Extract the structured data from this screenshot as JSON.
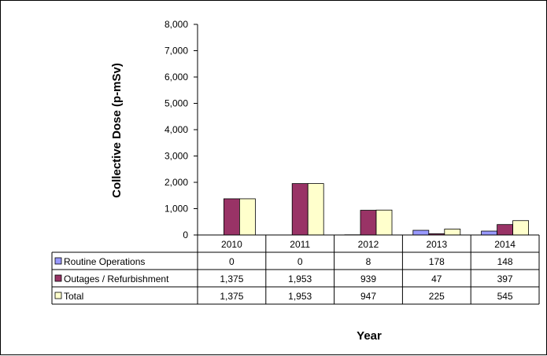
{
  "chart_data": {
    "type": "bar",
    "title": "",
    "ylabel": "Collective Dose (p-mSv)",
    "xlabel": "Year",
    "ylim": [
      0,
      8000
    ],
    "yticks": [
      "0",
      "1,000",
      "2,000",
      "3,000",
      "4,000",
      "5,000",
      "6,000",
      "7,000",
      "8,000"
    ],
    "categories": [
      "2010",
      "2011",
      "2012",
      "2013",
      "2014"
    ],
    "grid": false,
    "legend": "data-table",
    "series": [
      {
        "name": "Routine Operations",
        "color": "#9999ff",
        "values": [
          0,
          0,
          8,
          178,
          148
        ],
        "labels": [
          "0",
          "0",
          "8",
          "178",
          "148"
        ]
      },
      {
        "name": "Outages / Refurbishment",
        "color": "#993366",
        "values": [
          1375,
          1953,
          939,
          47,
          397
        ],
        "labels": [
          "1,375",
          "1,953",
          "939",
          "47",
          "397"
        ]
      },
      {
        "name": "Total",
        "color": "#ffffcc",
        "values": [
          1375,
          1953,
          947,
          225,
          545
        ],
        "labels": [
          "1,375",
          "1,953",
          "947",
          "225",
          "545"
        ]
      }
    ]
  }
}
